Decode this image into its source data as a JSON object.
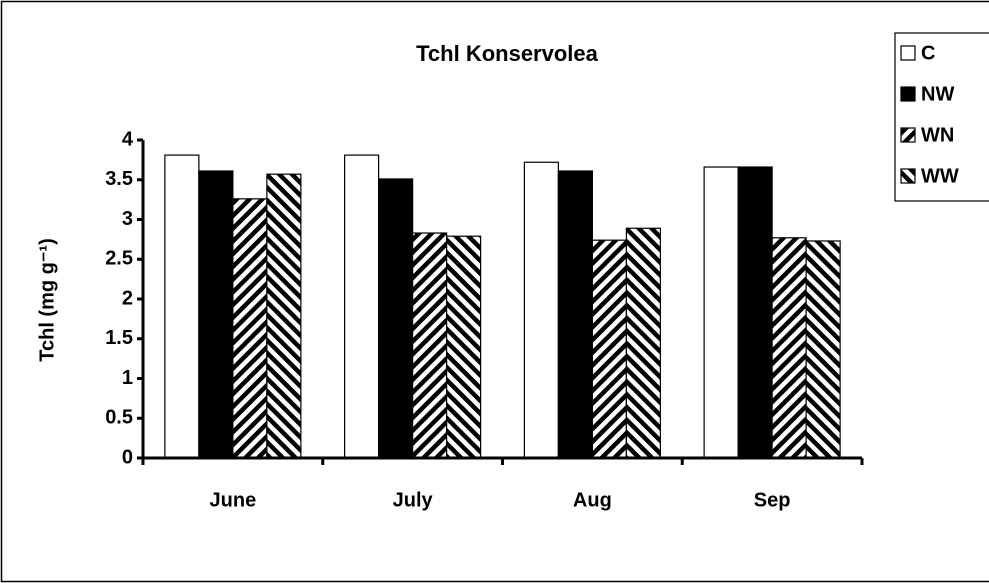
{
  "chart_data": {
    "type": "bar",
    "title": "Tchl Konservolea",
    "y_label": "Tchl (mg g⁻¹)",
    "categories": [
      "June",
      "July",
      "Aug",
      "Sep"
    ],
    "series": [
      {
        "name": "C",
        "color": "#ffffff",
        "pattern": "solid",
        "values": [
          3.81,
          3.81,
          3.72,
          3.66
        ]
      },
      {
        "name": "NW",
        "color": "#000000",
        "pattern": "solid",
        "values": [
          3.61,
          3.51,
          3.61,
          3.66
        ]
      },
      {
        "name": "WN",
        "color": "#000000",
        "pattern": "backslash",
        "values": [
          3.26,
          2.83,
          2.74,
          2.77
        ]
      },
      {
        "name": "WW",
        "color": "#000000",
        "pattern": "slash",
        "values": [
          3.57,
          2.79,
          2.89,
          2.73
        ]
      }
    ],
    "ylim": [
      0,
      4
    ],
    "yticks": [
      0,
      0.5,
      1,
      1.5,
      2,
      2.5,
      3,
      3.5,
      4
    ],
    "grid": false,
    "legend": "top-right"
  }
}
